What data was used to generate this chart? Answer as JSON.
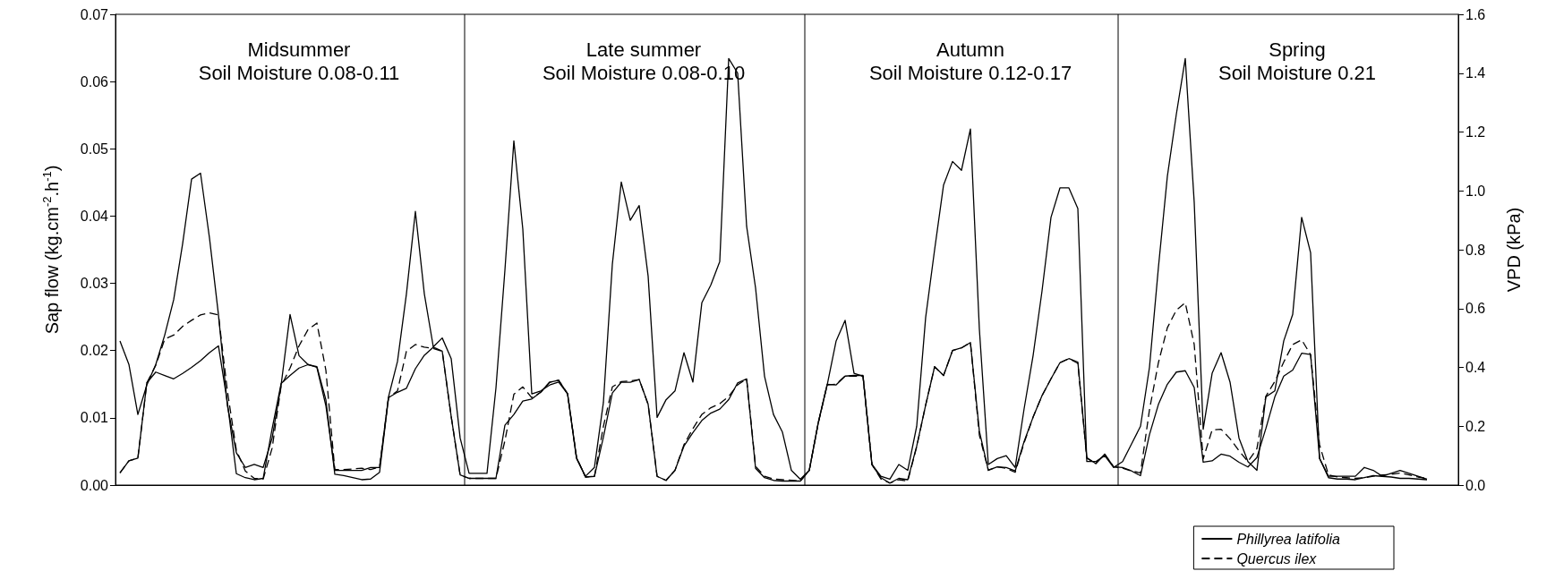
{
  "chart_data": {
    "type": "line",
    "ylabel": "Sap flow (kg.cm$^{-2}$.h$^{-1}$)",
    "y2label": "VPD (kPa)",
    "annotations": [
      "Midsummer\nSoil Moisture 0.08-0.11",
      "Late summer\nSoil Moisture 0.08-0.10",
      "Autumn\nSoil Moisture 0.12-0.17",
      "Spring\nSoil Moisture 0.21"
    ],
    "categories": [
      null,
      null,
      null,
      null,
      null,
      null,
      null,
      null,
      null,
      null,
      null,
      null,
      null,
      null,
      null,
      null,
      null,
      null,
      null,
      null,
      null,
      null,
      null,
      null,
      null,
      null,
      null,
      null,
      null,
      null,
      null,
      null,
      null,
      null,
      null,
      null,
      null,
      null,
      null,
      null,
      null,
      null,
      null,
      null,
      null,
      null,
      null,
      null,
      null,
      null,
      null,
      null,
      null,
      null,
      null,
      null,
      null,
      null,
      null,
      null,
      null,
      null,
      null,
      null,
      null,
      null,
      null,
      null,
      null,
      null,
      null,
      null,
      null,
      null,
      null,
      null,
      null,
      null,
      null,
      null,
      null,
      null,
      null,
      null,
      null,
      null,
      null,
      null,
      null,
      null,
      null,
      null,
      null,
      null,
      null,
      null,
      null,
      null,
      null,
      null,
      null,
      null,
      null,
      null,
      null,
      null,
      null,
      null,
      null,
      null,
      null,
      null,
      null,
      null,
      null,
      null,
      null,
      null,
      null,
      null,
      null,
      null,
      null,
      null,
      null,
      null,
      null,
      null,
      null,
      null,
      null,
      null,
      null,
      null,
      null,
      null,
      null,
      null,
      null,
      null,
      null,
      null,
      null,
      null,
      null,
      null,
      null,
      null,
      null,
      null
    ],
    "ylim": [
      0,
      0.07
    ],
    "yticks": [
      {
        "value": 0,
        "label": "0.00"
      },
      {
        "value": 0.01,
        "label": "0.01"
      },
      {
        "value": 0.02,
        "label": "0.02"
      },
      {
        "value": 0.03,
        "label": "0.03"
      },
      {
        "value": 0.04,
        "label": "0.04"
      },
      {
        "value": 0.05,
        "label": "0.05"
      },
      {
        "value": 0.06,
        "label": "0.06"
      },
      {
        "value": 0.07,
        "label": "0.07"
      }
    ],
    "y2lim": [
      0,
      1.6
    ],
    "y2ticks": [
      {
        "value": 0,
        "label": "0.0"
      },
      {
        "value": 0.2,
        "label": "0.2"
      },
      {
        "value": 0.4,
        "label": "0.4"
      },
      {
        "value": 0.6,
        "label": "0.6"
      },
      {
        "value": 0.8,
        "label": "0.8"
      },
      {
        "value": 1.0,
        "label": "1.0"
      },
      {
        "value": 1.2,
        "label": "1.2"
      },
      {
        "value": 1.4,
        "label": "1.4"
      },
      {
        "value": 1.6,
        "label": "1.6"
      }
    ],
    "tick_labels": "y",
    "legend": "bottom right",
    "marker": "none",
    "series": [
      {
        "name": "Phillyrea latifolia",
        "color": "#000000",
        "line_style": "solid",
        "values": [
          0.0018,
          0.0036,
          0.004,
          0.0152,
          0.0168,
          0.0163,
          0.0158,
          0.0166,
          0.0175,
          0.0185,
          0.0197,
          0.0207,
          0.0123,
          0.0017,
          0.0011,
          0.0008,
          0.001,
          0.0084,
          0.0151,
          0.0163,
          0.0174,
          0.0179,
          0.0176,
          0.0127,
          0.0016,
          0.0014,
          0.0011,
          0.0008,
          0.0009,
          0.0019,
          0.013,
          0.0138,
          0.0144,
          0.0173,
          0.0193,
          0.0205,
          0.0199,
          0.0102,
          0.0015,
          0.001,
          0.001,
          0.001,
          0.001,
          0.0089,
          0.0105,
          0.0125,
          0.0128,
          0.0138,
          0.0153,
          0.0156,
          0.0136,
          0.0041,
          0.0012,
          0.0013,
          0.0071,
          0.0137,
          0.0153,
          0.0153,
          0.0157,
          0.012,
          0.0013,
          0.0007,
          0.0022,
          0.0058,
          0.0078,
          0.0096,
          0.0107,
          0.0113,
          0.0127,
          0.0152,
          0.0158,
          0.0025,
          0.0011,
          0.0007,
          0.0006,
          0.0006,
          0.0006,
          0.0022,
          0.0093,
          0.015,
          0.0149,
          0.0162,
          0.0163,
          0.0163,
          0.003,
          0.0011,
          0.0003,
          0.001,
          0.0008,
          0.0058,
          0.0119,
          0.0176,
          0.0163,
          0.02,
          0.0204,
          0.0212,
          0.008,
          0.0022,
          0.0027,
          0.0026,
          0.0021,
          0.0065,
          0.0101,
          0.0133,
          0.0158,
          0.0182,
          0.0188,
          0.0183,
          0.0041,
          0.0032,
          0.0046,
          0.0027,
          0.0026,
          0.0021,
          0.0014,
          0.0075,
          0.012,
          0.015,
          0.0168,
          0.017,
          0.0145,
          0.0034,
          0.0036,
          0.0046,
          0.0043,
          0.0034,
          0.0027,
          0.0041,
          0.0084,
          0.0131,
          0.0162,
          0.0171,
          0.0196,
          0.0194,
          0.004,
          0.0011,
          0.0009,
          0.0009,
          0.0008,
          0.0011,
          0.0014,
          0.0013,
          0.0012,
          0.001,
          0.001,
          0.0009,
          0.0008,
          null,
          null,
          null
        ]
      },
      {
        "name": "Quercus ilex",
        "color": "#000000",
        "line_style": "dashed",
        "values": [
          0.0018,
          0.0036,
          0.004,
          0.0152,
          0.0178,
          0.0217,
          0.0223,
          0.0236,
          0.0245,
          0.0253,
          0.0256,
          0.0253,
          0.014,
          0.0052,
          0.0021,
          0.001,
          0.0009,
          0.0055,
          0.0147,
          0.0174,
          0.0207,
          0.0231,
          0.0241,
          0.0171,
          0.0023,
          0.0023,
          0.0024,
          0.0025,
          0.0023,
          0.0027,
          0.013,
          0.014,
          0.0199,
          0.0209,
          0.0205,
          0.0203,
          0.0199,
          0.0102,
          0.0015,
          0.001,
          0.001,
          0.001,
          0.001,
          0.0066,
          0.0135,
          0.0146,
          0.013,
          0.0138,
          0.0153,
          0.0156,
          0.0136,
          0.0041,
          0.0012,
          0.0013,
          0.0087,
          0.0146,
          0.0154,
          0.0155,
          0.0157,
          0.012,
          0.0013,
          0.0007,
          0.0022,
          0.006,
          0.0084,
          0.0105,
          0.0115,
          0.0121,
          0.0132,
          0.0149,
          0.0158,
          0.0028,
          0.0013,
          0.0009,
          0.0008,
          0.0007,
          0.0006,
          0.0022,
          0.0092,
          0.0149,
          0.015,
          0.0162,
          0.0162,
          0.0162,
          0.0031,
          0.0009,
          0.0003,
          0.0008,
          0.0006,
          0.0057,
          0.0119,
          0.0176,
          0.0163,
          0.02,
          0.0204,
          0.0212,
          0.0074,
          0.0022,
          0.0027,
          0.0025,
          0.0019,
          0.0063,
          0.0101,
          0.0133,
          0.0158,
          0.0182,
          0.0188,
          0.0181,
          0.004,
          0.0032,
          0.0046,
          0.0027,
          0.0025,
          0.0021,
          0.0018,
          0.0112,
          0.0182,
          0.0234,
          0.026,
          0.0271,
          0.0209,
          0.0039,
          0.0082,
          0.0083,
          0.0069,
          0.0051,
          0.0035,
          0.0054,
          0.0132,
          0.0154,
          0.0183,
          0.0209,
          0.0216,
          0.0194,
          0.006,
          0.0015,
          0.0012,
          0.0011,
          0.001,
          0.0011,
          0.0013,
          0.0015,
          0.0016,
          0.0018,
          0.0015,
          0.0012,
          0.001,
          null,
          null,
          null
        ]
      },
      {
        "color": "#000000",
        "line_style": "solid",
        "axis": "y2",
        "values": [
          0.49,
          0.41,
          0.24,
          0.34,
          0.41,
          0.51,
          0.63,
          0.82,
          1.04,
          1.06,
          0.84,
          0.58,
          0.27,
          0.11,
          0.06,
          0.07,
          0.06,
          0.16,
          0.34,
          0.58,
          0.44,
          0.41,
          0.4,
          0.27,
          0.05,
          0.05,
          0.05,
          0.05,
          0.06,
          0.06,
          0.3,
          0.42,
          0.65,
          0.93,
          0.65,
          0.47,
          0.5,
          0.43,
          0.16,
          0.04,
          0.04,
          0.04,
          0.33,
          0.73,
          1.17,
          0.87,
          0.31,
          0.32,
          0.34,
          0.35,
          0.31,
          0.09,
          0.03,
          0.06,
          0.28,
          0.75,
          1.03,
          0.9,
          0.95,
          0.71,
          0.23,
          0.29,
          0.32,
          0.45,
          0.35,
          0.62,
          0.68,
          0.76,
          1.45,
          1.4,
          0.88,
          0.67,
          0.37,
          0.24,
          0.18,
          0.05,
          0.02,
          0.05,
          0.21,
          0.34,
          0.49,
          0.56,
          0.38,
          0.37,
          0.07,
          0.03,
          0.02,
          0.07,
          0.05,
          0.2,
          0.57,
          0.8,
          1.02,
          1.1,
          1.07,
          1.21,
          0.53,
          0.07,
          0.09,
          0.1,
          0.06,
          0.26,
          0.44,
          0.66,
          0.91,
          1.01,
          1.01,
          0.94,
          0.08,
          0.08,
          0.1,
          0.06,
          0.08,
          0.14,
          0.2,
          0.4,
          0.74,
          1.05,
          1.26,
          1.45,
          0.96,
          0.19,
          0.38,
          0.45,
          0.35,
          0.16,
          0.08,
          0.05,
          0.3,
          0.32,
          0.49,
          0.58,
          0.91,
          0.79,
          0.09,
          0.03,
          0.03,
          0.03,
          0.03,
          0.06,
          0.05,
          0.03,
          0.04,
          0.05,
          0.04,
          0.03,
          0.02,
          null,
          null,
          null
        ]
      }
    ]
  }
}
